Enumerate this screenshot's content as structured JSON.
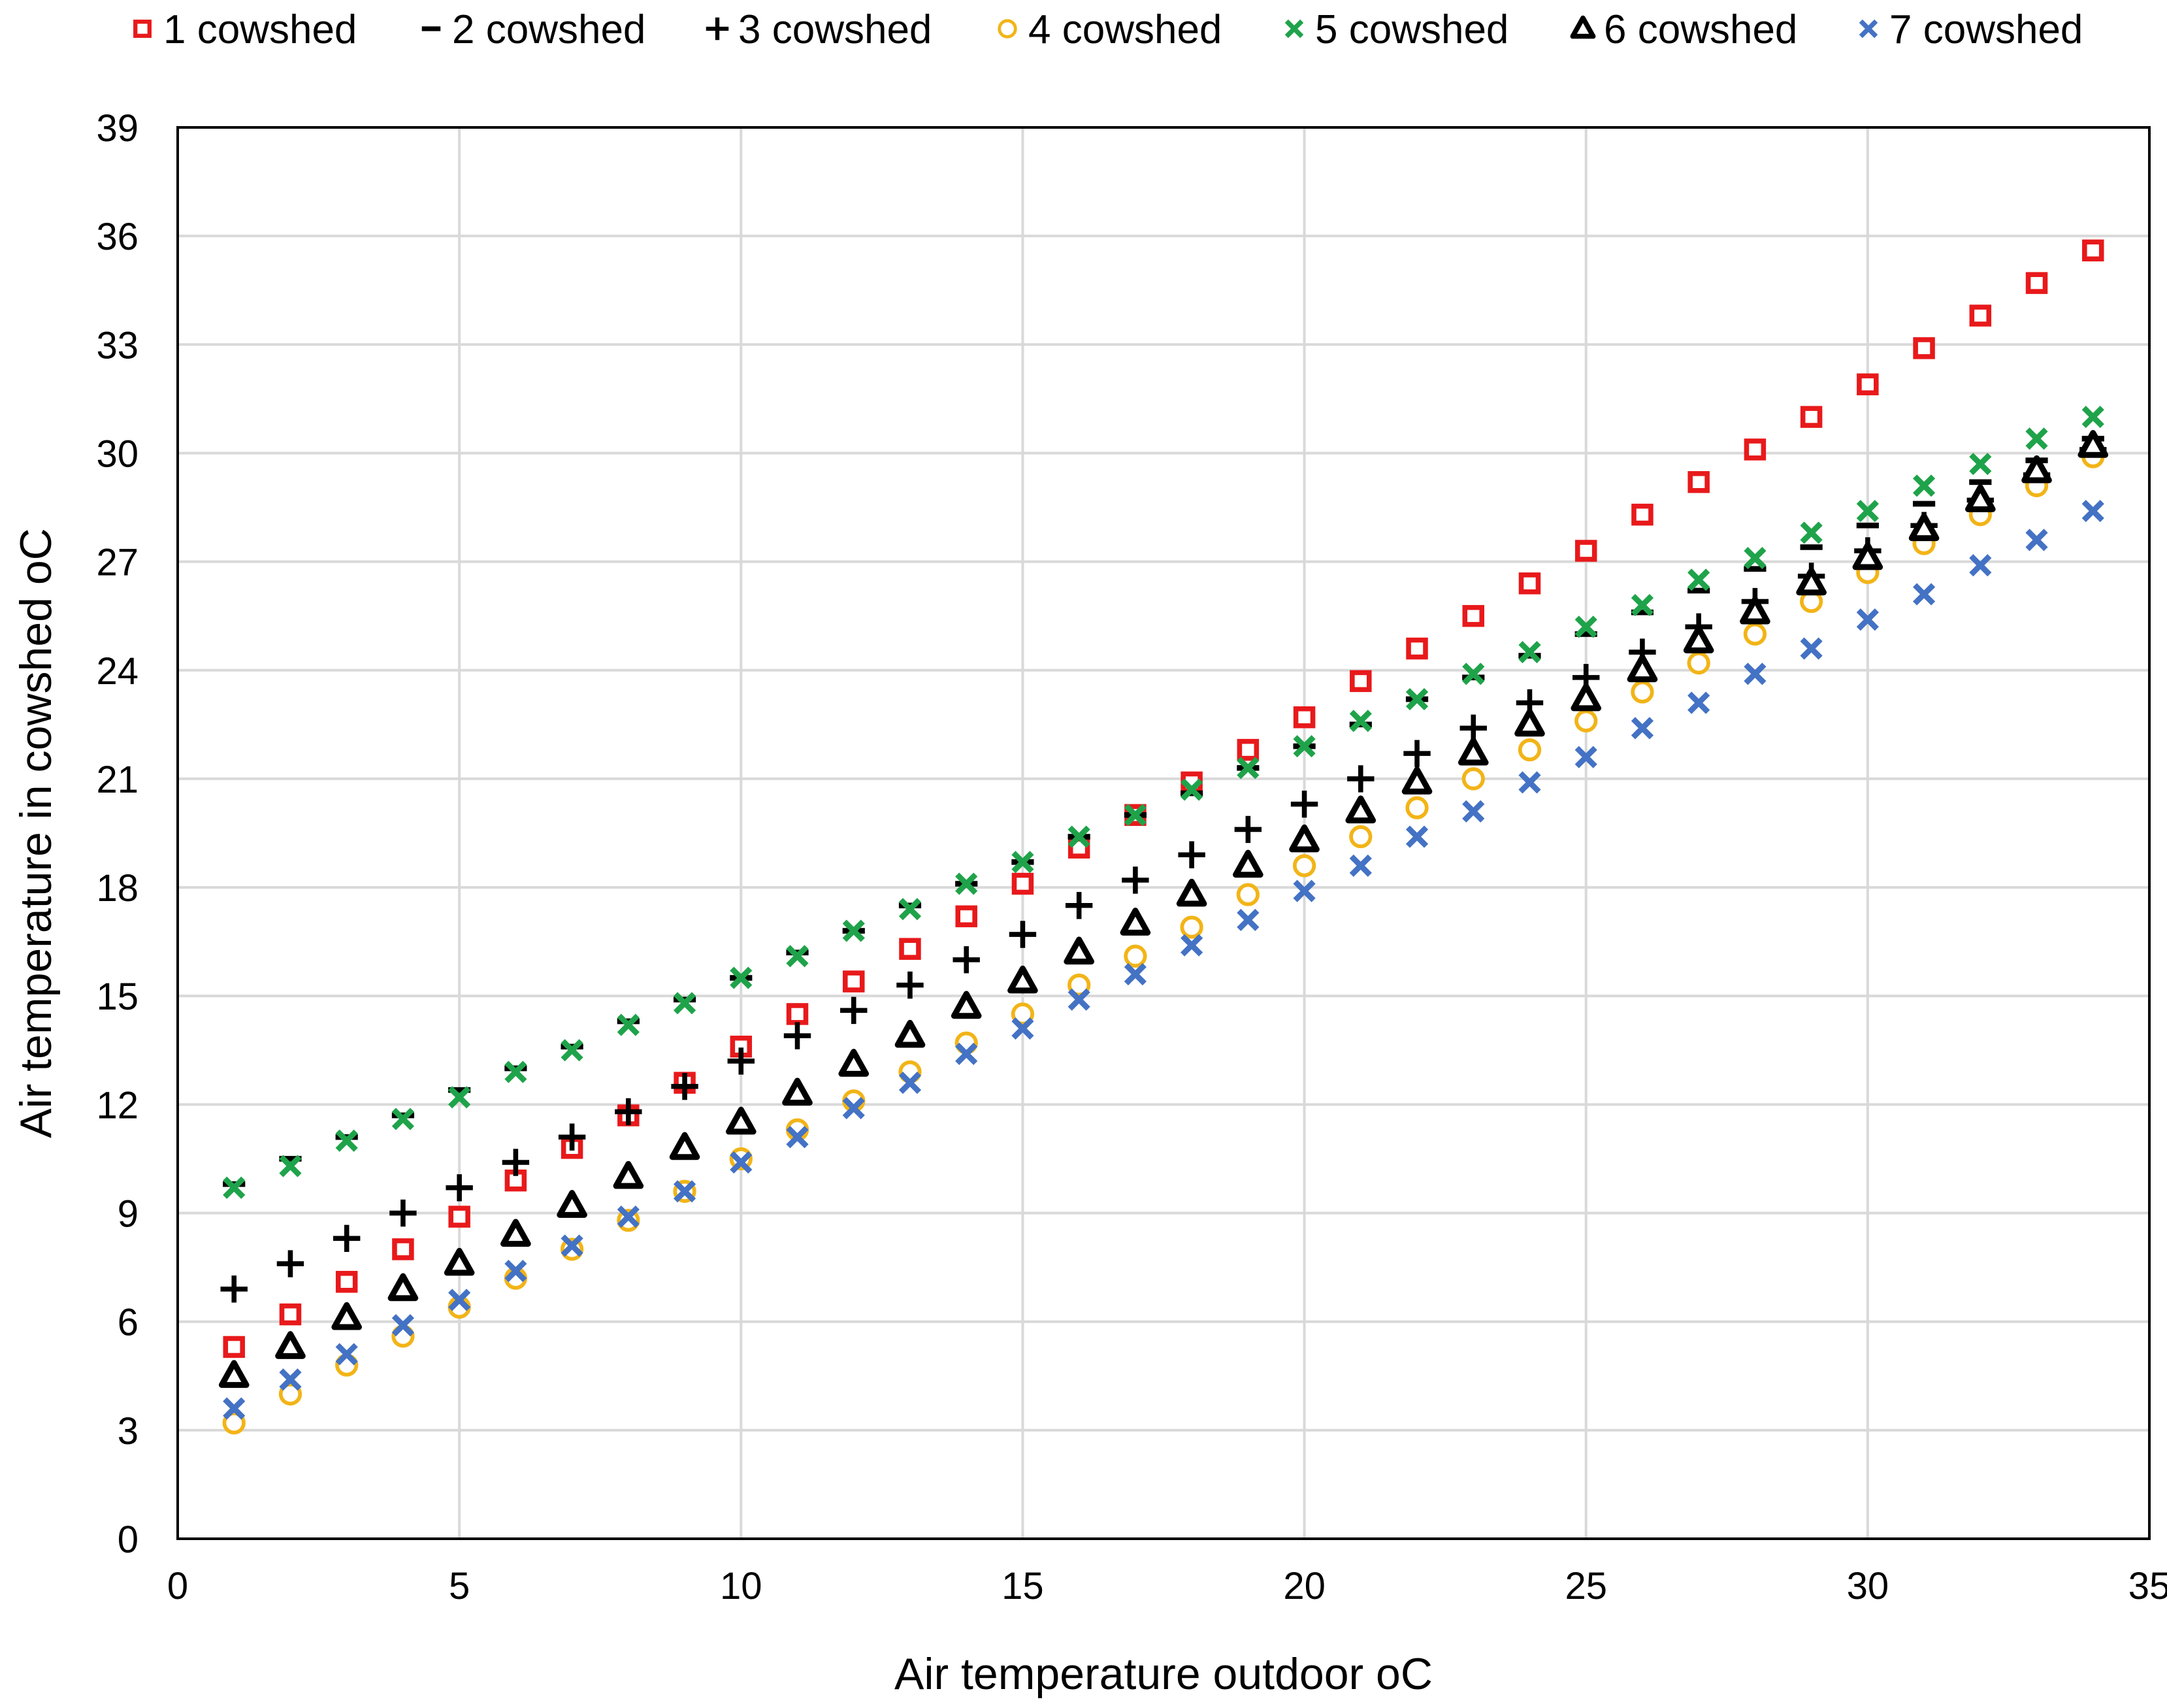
{
  "chart_data": {
    "type": "scatter",
    "xlabel": "Air temperature outdoor oC",
    "ylabel": "Air temperature in cowshed  oC",
    "xlim": [
      0,
      35
    ],
    "ylim": [
      0,
      39
    ],
    "xticks": [
      0,
      5,
      10,
      15,
      20,
      25,
      30,
      35
    ],
    "yticks": [
      0,
      3,
      6,
      9,
      12,
      15,
      18,
      21,
      24,
      27,
      30,
      33,
      36,
      39
    ],
    "grid": true,
    "legend_position": "top",
    "x": [
      1,
      2,
      3,
      4,
      5,
      6,
      7,
      8,
      9,
      10,
      11,
      12,
      13,
      14,
      15,
      16,
      17,
      18,
      19,
      20,
      21,
      22,
      23,
      24,
      25,
      26,
      27,
      28,
      29,
      30,
      31,
      32,
      33,
      34
    ],
    "series": [
      {
        "name": "1 cowshed",
        "marker": "square",
        "color": "#E8191B",
        "values": [
          5.3,
          6.2,
          7.1,
          8.0,
          8.9,
          9.9,
          10.8,
          11.7,
          12.6,
          13.6,
          14.5,
          15.4,
          16.3,
          17.2,
          18.1,
          19.1,
          20.0,
          20.9,
          21.8,
          22.7,
          23.7,
          24.6,
          25.5,
          26.4,
          27.3,
          28.3,
          29.2,
          30.1,
          31.0,
          31.9,
          32.9,
          33.8,
          34.7,
          35.6
        ]
      },
      {
        "name": "2 cowshed",
        "marker": "dash",
        "color": "#000000",
        "values": [
          9.8,
          10.5,
          11.1,
          11.7,
          12.4,
          13.0,
          13.6,
          14.3,
          14.9,
          15.5,
          16.2,
          16.8,
          17.5,
          18.1,
          18.7,
          19.4,
          20.0,
          20.6,
          21.3,
          21.9,
          22.5,
          23.2,
          23.8,
          24.4,
          25.0,
          25.6,
          26.2,
          26.8,
          27.4,
          28.0,
          28.6,
          29.2,
          29.8,
          30.4
        ]
      },
      {
        "name": "3 cowshed",
        "marker": "plus",
        "color": "#000000",
        "values": [
          6.9,
          7.6,
          8.3,
          9.0,
          9.7,
          10.4,
          11.1,
          11.8,
          12.5,
          13.2,
          13.9,
          14.6,
          15.3,
          16.0,
          16.7,
          17.5,
          18.2,
          18.9,
          19.6,
          20.3,
          21.0,
          21.7,
          22.4,
          23.1,
          23.8,
          24.5,
          25.2,
          25.9,
          26.6,
          27.3,
          28.0,
          28.7,
          29.4,
          30.1
        ]
      },
      {
        "name": "4 cowshed",
        "marker": "circle",
        "color": "#F2B417",
        "values": [
          3.2,
          4.0,
          4.8,
          5.6,
          6.4,
          7.2,
          8.0,
          8.8,
          9.6,
          10.5,
          11.3,
          12.1,
          12.9,
          13.7,
          14.5,
          15.3,
          16.1,
          16.9,
          17.8,
          18.6,
          19.4,
          20.2,
          21.0,
          21.8,
          22.6,
          23.4,
          24.2,
          25.0,
          25.9,
          26.7,
          27.5,
          28.3,
          29.1,
          29.9
        ]
      },
      {
        "name": "5 cowshed",
        "marker": "x",
        "color": "#1FA34A",
        "values": [
          9.7,
          10.3,
          11.0,
          11.6,
          12.2,
          12.9,
          13.5,
          14.2,
          14.8,
          15.5,
          16.1,
          16.8,
          17.4,
          18.1,
          18.7,
          19.4,
          20.0,
          20.7,
          21.3,
          21.9,
          22.6,
          23.2,
          23.9,
          24.5,
          25.2,
          25.8,
          26.5,
          27.1,
          27.8,
          28.4,
          29.1,
          29.7,
          30.4,
          31.0
        ]
      },
      {
        "name": "6 cowshed",
        "marker": "triangle",
        "color": "#000000",
        "values": [
          4.5,
          5.3,
          6.1,
          6.9,
          7.6,
          8.4,
          9.2,
          10.0,
          10.8,
          11.5,
          12.3,
          13.1,
          13.9,
          14.7,
          15.4,
          16.2,
          17.0,
          17.8,
          18.6,
          19.3,
          20.1,
          20.9,
          21.7,
          22.5,
          23.2,
          24.0,
          24.8,
          25.6,
          26.4,
          27.1,
          27.9,
          28.7,
          29.5,
          30.2
        ]
      },
      {
        "name": "7 cowshed",
        "marker": "x",
        "color": "#4472C4",
        "values": [
          3.6,
          4.4,
          5.1,
          5.9,
          6.6,
          7.4,
          8.1,
          8.9,
          9.6,
          10.4,
          11.1,
          11.9,
          12.6,
          13.4,
          14.1,
          14.9,
          15.6,
          16.4,
          17.1,
          17.9,
          18.6,
          19.4,
          20.1,
          20.9,
          21.6,
          22.4,
          23.1,
          23.9,
          24.6,
          25.4,
          26.1,
          26.9,
          27.6,
          28.4
        ]
      }
    ]
  }
}
